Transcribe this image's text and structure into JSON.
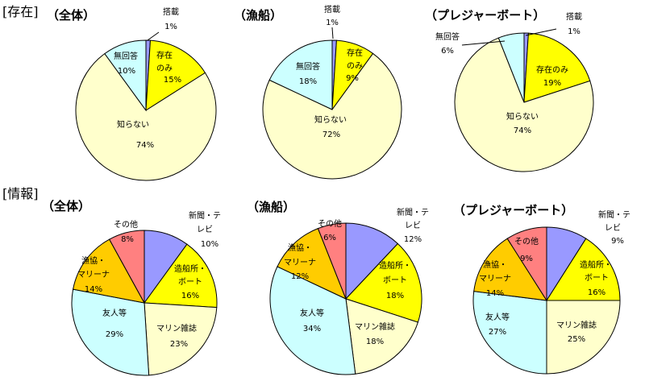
{
  "sections": {
    "existence": "[存在]",
    "information": "[情報]"
  },
  "colors": {
    "blue": "#9999ff",
    "yellow": "#ffff00",
    "cream": "#ffffcc",
    "lightblue": "#ccffff",
    "orange": "#ffcc00",
    "pink": "#ff8080",
    "outline": "#000000"
  },
  "chart_data": [
    {
      "type": "pie",
      "title": "（全体）",
      "slices": [
        {
          "label": "搭載",
          "value": 1,
          "color": "#9999ff",
          "text": "1%"
        },
        {
          "label": "存在のみ",
          "value": 15,
          "color": "#ffff00",
          "text": "15%"
        },
        {
          "label": "知らない",
          "value": 74,
          "color": "#ffffcc",
          "text": "74%"
        },
        {
          "label": "無回答",
          "value": 10,
          "color": "#ccffff",
          "text": "10%"
        }
      ]
    },
    {
      "type": "pie",
      "title": "（漁船）",
      "slices": [
        {
          "label": "搭載",
          "value": 1,
          "color": "#9999ff",
          "text": "1%"
        },
        {
          "label": "存在のみ",
          "value": 9,
          "color": "#ffff00",
          "text": "9%"
        },
        {
          "label": "知らない",
          "value": 72,
          "color": "#ffffcc",
          "text": "72%"
        },
        {
          "label": "無回答",
          "value": 18,
          "color": "#ccffff",
          "text": "18%"
        }
      ]
    },
    {
      "type": "pie",
      "title": "（プレジャーボート）",
      "slices": [
        {
          "label": "搭載",
          "value": 1,
          "color": "#9999ff",
          "text": "1%"
        },
        {
          "label": "存在のみ",
          "value": 19,
          "color": "#ffff00",
          "text": "19%"
        },
        {
          "label": "知らない",
          "value": 74,
          "color": "#ffffcc",
          "text": "74%"
        },
        {
          "label": "無回答",
          "value": 6,
          "color": "#ccffff",
          "text": "6%"
        }
      ]
    },
    {
      "type": "pie",
      "title": "（全体）",
      "slices": [
        {
          "label": "新聞・テレビ",
          "value": 10,
          "color": "#9999ff",
          "text": "10%"
        },
        {
          "label": "造船所・ボート",
          "value": 16,
          "color": "#ffff00",
          "text": "16%"
        },
        {
          "label": "マリン雑誌",
          "value": 23,
          "color": "#ffffcc",
          "text": "23%"
        },
        {
          "label": "友人等",
          "value": 29,
          "color": "#ccffff",
          "text": "29%"
        },
        {
          "label": "漁協・マリーナ",
          "value": 14,
          "color": "#ffcc00",
          "text": "14%"
        },
        {
          "label": "その他",
          "value": 8,
          "color": "#ff8080",
          "text": "8%"
        }
      ]
    },
    {
      "type": "pie",
      "title": "（漁船）",
      "slices": [
        {
          "label": "新聞・テレビ",
          "value": 12,
          "color": "#9999ff",
          "text": "12%"
        },
        {
          "label": "造船所・ボート",
          "value": 18,
          "color": "#ffff00",
          "text": "18%"
        },
        {
          "label": "マリン雑誌",
          "value": 18,
          "color": "#ffffcc",
          "text": "18%"
        },
        {
          "label": "友人等",
          "value": 34,
          "color": "#ccffff",
          "text": "34%"
        },
        {
          "label": "漁協・マリーナ",
          "value": 12,
          "color": "#ffcc00",
          "text": "12%"
        },
        {
          "label": "その他",
          "value": 6,
          "color": "#ff8080",
          "text": "6%"
        }
      ]
    },
    {
      "type": "pie",
      "title": "（プレジャーボート）",
      "slices": [
        {
          "label": "新聞・テレビ",
          "value": 9,
          "color": "#9999ff",
          "text": "9%"
        },
        {
          "label": "造船所・ボート",
          "value": 16,
          "color": "#ffff00",
          "text": "16%"
        },
        {
          "label": "マリン雑誌",
          "value": 25,
          "color": "#ffffcc",
          "text": "25%"
        },
        {
          "label": "友人等",
          "value": 27,
          "color": "#ccffff",
          "text": "27%"
        },
        {
          "label": "漁協・マリーナ",
          "value": 14,
          "color": "#ffcc00",
          "text": "14%"
        },
        {
          "label": "その他",
          "value": 9,
          "color": "#ff8080",
          "text": "9%"
        }
      ]
    }
  ]
}
